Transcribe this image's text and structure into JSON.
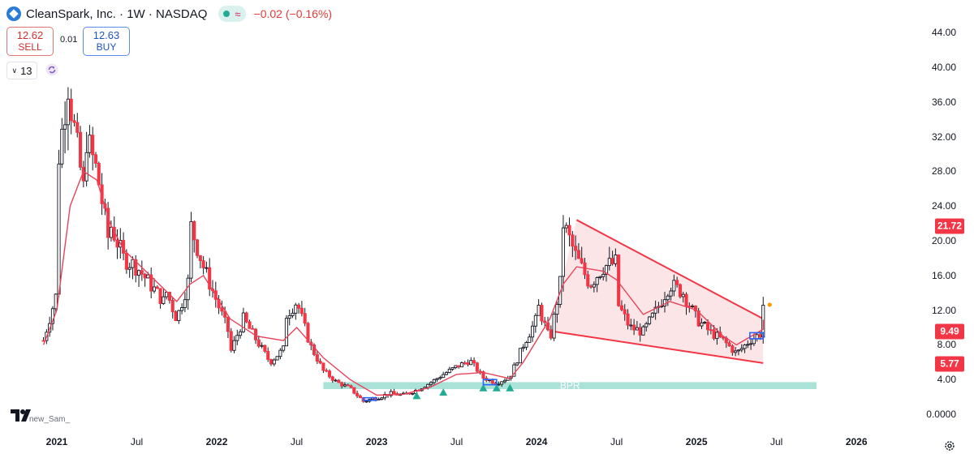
{
  "header": {
    "symbol": "CleanSpark, Inc. · 1W · NASDAQ",
    "wave": "≈",
    "change": "−0.02 (−0.16%)"
  },
  "trade": {
    "sell_price": "12.62",
    "sell_label": "SELL",
    "spread": "0.01",
    "buy_price": "12.63",
    "buy_label": "BUY"
  },
  "indicator": {
    "value": "13"
  },
  "author": "new_Sam_",
  "colors": {
    "up": "#22ab94",
    "down": "#f23645",
    "ma": "#e8435a",
    "zone": "#8dd8cb",
    "wedge": "#fbe0e3"
  },
  "chart_data": {
    "type": "candlestick",
    "interval": "1W",
    "x_ticks": [
      "2021",
      "Jul",
      "2022",
      "Jul",
      "2023",
      "Jul",
      "2024",
      "Jul",
      "2025",
      "Jul",
      "2026"
    ],
    "y_ticks": [
      "44.00",
      "40.00",
      "36.00",
      "32.00",
      "28.00",
      "24.00",
      "20.00",
      "16.00",
      "12.00",
      "8.00",
      "4.00",
      "0.0000"
    ],
    "ylim": [
      0,
      44
    ],
    "price_tags": [
      {
        "label": "21.72",
        "value": 21.72,
        "color": "#f23645"
      },
      {
        "label": "9.49",
        "value": 9.49,
        "color": "#f23645"
      },
      {
        "label": "5.77",
        "value": 5.77,
        "color": "#f23645"
      }
    ],
    "zone_label": "BPR",
    "zone": {
      "x_from": "2022-09",
      "x_to": "2025-10",
      "y_from": 2.9,
      "y_to": 3.7
    },
    "wedge": {
      "upper": [
        [
          "2024-04",
          22.4
        ],
        [
          "2025-06",
          11.0
        ]
      ],
      "lower": [
        [
          "2024-02",
          9.6
        ],
        [
          "2025-06",
          5.9
        ]
      ]
    },
    "series": [
      {
        "kind": "price",
        "points": [
          [
            "2020-12",
            8.5
          ],
          [
            "2021-01",
            14
          ],
          [
            "2021-01",
            28
          ],
          [
            "2021-02",
            40
          ],
          [
            "2021-02",
            36
          ],
          [
            "2021-03",
            26
          ],
          [
            "2021-03",
            33
          ],
          [
            "2021-04",
            28
          ],
          [
            "2021-05",
            19
          ],
          [
            "2021-05",
            22
          ],
          [
            "2021-06",
            18
          ],
          [
            "2021-07",
            17
          ],
          [
            "2021-08",
            15
          ],
          [
            "2021-09",
            13
          ],
          [
            "2021-09",
            15
          ],
          [
            "2021-10",
            11
          ],
          [
            "2021-11",
            16
          ],
          [
            "2021-11",
            22
          ],
          [
            "2021-12",
            17
          ],
          [
            "2022-01",
            13
          ],
          [
            "2022-02",
            9
          ],
          [
            "2022-02",
            7
          ],
          [
            "2022-03",
            11
          ],
          [
            "2022-04",
            8.5
          ],
          [
            "2022-05",
            6
          ],
          [
            "2022-06",
            7.5
          ],
          [
            "2022-06",
            11
          ],
          [
            "2022-07",
            13
          ],
          [
            "2022-08",
            8
          ],
          [
            "2022-09",
            5
          ],
          [
            "2022-10",
            3.7
          ],
          [
            "2022-11",
            3
          ],
          [
            "2022-12",
            1.5
          ],
          [
            "2023-01",
            1.9
          ],
          [
            "2023-02",
            2.4
          ],
          [
            "2023-03",
            2.2
          ],
          [
            "2023-04",
            2.8
          ],
          [
            "2023-05",
            3.6
          ],
          [
            "2023-06",
            4.6
          ],
          [
            "2023-07",
            5.5
          ],
          [
            "2023-08",
            6.2
          ],
          [
            "2023-09",
            4.2
          ],
          [
            "2023-10",
            3.6
          ],
          [
            "2023-11",
            4.3
          ],
          [
            "2023-12",
            8
          ],
          [
            "2024-01",
            11
          ],
          [
            "2024-01",
            13
          ],
          [
            "2024-02",
            8.5
          ],
          [
            "2024-03",
            17
          ],
          [
            "2024-03",
            22
          ],
          [
            "2024-04",
            18
          ],
          [
            "2024-05",
            15
          ],
          [
            "2024-06",
            17
          ],
          [
            "2024-07",
            17.5
          ],
          [
            "2024-07",
            13
          ],
          [
            "2024-08",
            10
          ],
          [
            "2024-09",
            9.5
          ],
          [
            "2024-10",
            12
          ],
          [
            "2024-11",
            15
          ],
          [
            "2024-12",
            14
          ],
          [
            "2025-01",
            11
          ],
          [
            "2025-02",
            9.5
          ],
          [
            "2025-03",
            8.5
          ],
          [
            "2025-04",
            7
          ],
          [
            "2025-05",
            8.5
          ],
          [
            "2025-06",
            9.5
          ],
          [
            "2025-06",
            12.62
          ]
        ]
      },
      {
        "kind": "moving-average",
        "points": [
          [
            "2020-12",
            8
          ],
          [
            "2021-01",
            12
          ],
          [
            "2021-02",
            24
          ],
          [
            "2021-03",
            28
          ],
          [
            "2021-04",
            27
          ],
          [
            "2021-05",
            22
          ],
          [
            "2021-06",
            19
          ],
          [
            "2021-08",
            16
          ],
          [
            "2021-10",
            13
          ],
          [
            "2021-11",
            15
          ],
          [
            "2021-12",
            16
          ],
          [
            "2022-02",
            11
          ],
          [
            "2022-04",
            9
          ],
          [
            "2022-06",
            8.5
          ],
          [
            "2022-07",
            10
          ],
          [
            "2022-09",
            6.5
          ],
          [
            "2022-11",
            4
          ],
          [
            "2023-01",
            2.2
          ],
          [
            "2023-03",
            2.3
          ],
          [
            "2023-05",
            3.1
          ],
          [
            "2023-07",
            4.6
          ],
          [
            "2023-09",
            4.8
          ],
          [
            "2023-11",
            4.1
          ],
          [
            "2023-12",
            6
          ],
          [
            "2024-02",
            11
          ],
          [
            "2024-03",
            15
          ],
          [
            "2024-04",
            17
          ],
          [
            "2024-06",
            16.5
          ],
          [
            "2024-07",
            15.5
          ],
          [
            "2024-09",
            11.5
          ],
          [
            "2024-11",
            13
          ],
          [
            "2025-01",
            12
          ],
          [
            "2025-03",
            9
          ],
          [
            "2025-04",
            8
          ],
          [
            "2025-06",
            9.8
          ],
          [
            "2025-06",
            10.9
          ]
        ]
      }
    ]
  }
}
